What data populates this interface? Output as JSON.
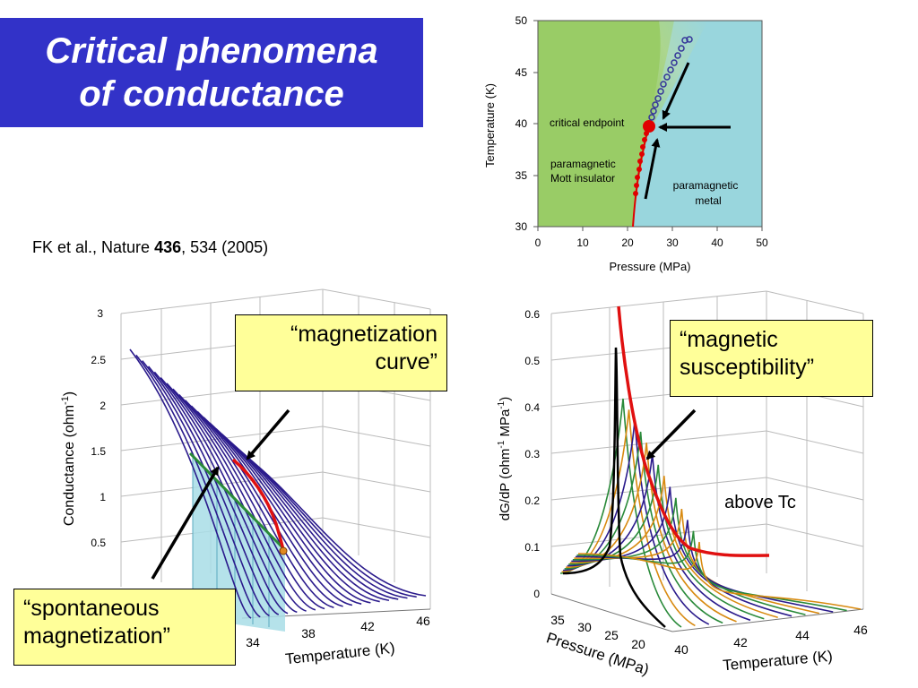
{
  "title": {
    "line1": "Critical phenomena",
    "line2": "of conductance"
  },
  "citation": {
    "prefix": "FK et al., Nature ",
    "volume": "436",
    "suffix": ", 534 (2005)"
  },
  "phase_diagram": {
    "xlabel": "Pressure (MPa)",
    "ylabel": "Temperature (K)",
    "xticks": [
      "0",
      "10",
      "20",
      "30",
      "40",
      "50"
    ],
    "yticks": [
      "30",
      "35",
      "40",
      "45",
      "50"
    ],
    "labels": {
      "critical_endpoint": "critical endpoint",
      "insulator_line1": "paramagnetic",
      "insulator_line2": "Mott insulator",
      "metal_line1": "paramagnetic",
      "metal_line2": "metal"
    },
    "colors": {
      "insulator": "#99cc66",
      "metal": "#99d6dd",
      "boundary": "#e00000",
      "crossover": "#333399"
    }
  },
  "left_plot": {
    "ylabel": "Conductance (ohm",
    "ylabel_sup": "-1",
    "ylabel_end": ")",
    "xlabel": "Temperature (K)",
    "zticks": [
      "3",
      "2.5",
      "2",
      "1.5",
      "1",
      "0.5"
    ],
    "xticks": [
      "34",
      "38",
      "42",
      "46"
    ],
    "callout_top_line1": "“magnetization",
    "callout_top_line2": "curve”",
    "callout_bottom_line1": "“spontaneous",
    "callout_bottom_line2": "magnetization”",
    "colors": {
      "curves": "#2b1b8c",
      "red": "#e01010",
      "green": "#2a8a3a",
      "fill": "#a8dde6"
    }
  },
  "right_plot": {
    "ylabel_part1": "dG/dP (ohm",
    "ylabel_sup1": "-1",
    "ylabel_part2": " MPa",
    "ylabel_sup2": "-1",
    "ylabel_part3": ")",
    "xlabel": "Temperature (K)",
    "plabel": "Pressure (MPa)",
    "zticks": [
      "0.6",
      "0.5",
      "0.4",
      "0.3",
      "0.2",
      "0.1",
      "0"
    ],
    "xticks": [
      "40",
      "42",
      "44",
      "46"
    ],
    "pticks": [
      "35",
      "30",
      "25",
      "20"
    ],
    "annotation": "above Tc",
    "callout_line1": "“magnetic",
    "callout_line2": "susceptibility”",
    "colors": {
      "red": "#e01010",
      "green": "#2a8a3a",
      "orange": "#d88a10",
      "blue": "#2b1b8c",
      "black": "#000000"
    }
  }
}
